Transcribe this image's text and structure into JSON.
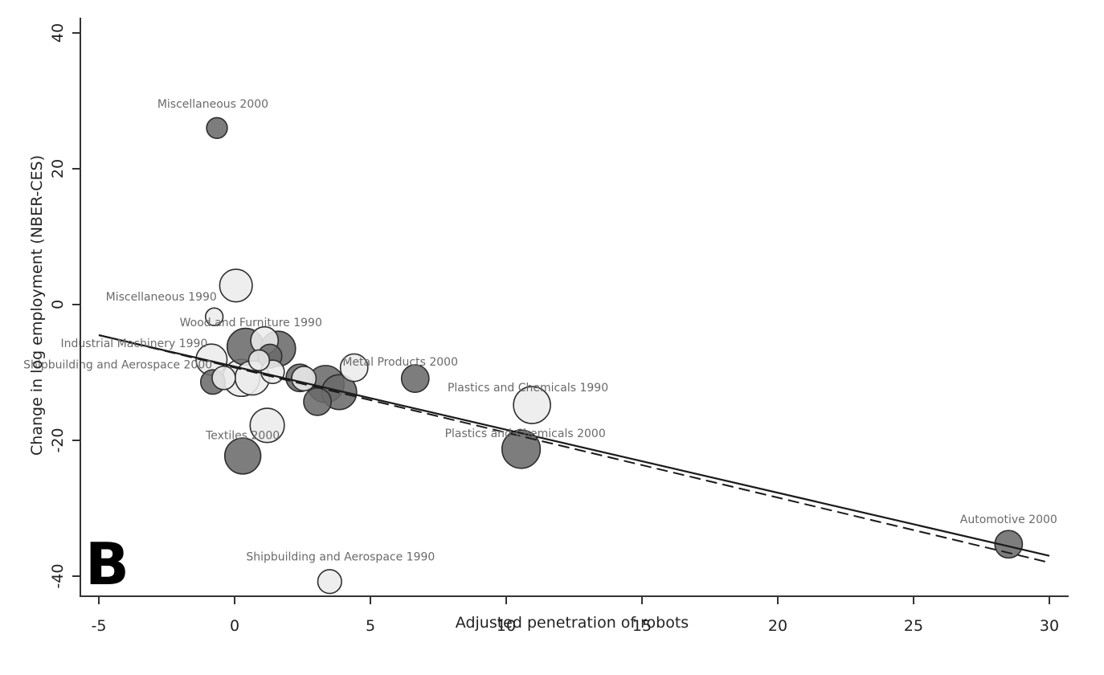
{
  "chart_data": {
    "type": "scatter",
    "panel_label": "B",
    "title": "",
    "xlabel": "Adjusted penetration of robots",
    "ylabel": "Change in log employment (NBER-CES)",
    "xlim": [
      -5.5,
      30.5
    ],
    "ylim": [
      -43,
      43
    ],
    "xticks": [
      -5,
      0,
      5,
      10,
      15,
      20,
      25,
      30
    ],
    "xtick_labels": [
      "-5",
      "0",
      "5",
      "10",
      "15",
      "20",
      "25",
      "30"
    ],
    "yticks": [
      -40,
      -20,
      0,
      20,
      40
    ],
    "ytick_labels": [
      "-40",
      "-20",
      "0",
      "20",
      "40"
    ],
    "grid": false,
    "colors": {
      "dark_fill": "#6b6b6b",
      "light_fill": "#ececec",
      "marker_stroke": "#2e2e2e",
      "line": "#1a1a1a",
      "annotation": "#6a6a6a"
    },
    "series": [
      {
        "name": "2000",
        "fill": "dark",
        "points": [
          {
            "x": -0.65,
            "y": 26.0,
            "weight": 0.1
          },
          {
            "x": 0.4,
            "y": -6.2,
            "weight": 0.45
          },
          {
            "x": 1.6,
            "y": -6.5,
            "weight": 0.4
          },
          {
            "x": 1.3,
            "y": -7.6,
            "weight": 0.15
          },
          {
            "x": -0.8,
            "y": -11.4,
            "weight": 0.16
          },
          {
            "x": 2.4,
            "y": -10.8,
            "weight": 0.22
          },
          {
            "x": 3.35,
            "y": -11.7,
            "weight": 0.46
          },
          {
            "x": 3.85,
            "y": -12.9,
            "weight": 0.4
          },
          {
            "x": 3.05,
            "y": -14.3,
            "weight": 0.22
          },
          {
            "x": 6.65,
            "y": -10.9,
            "weight": 0.22
          },
          {
            "x": 0.3,
            "y": -22.3,
            "weight": 0.43
          },
          {
            "x": 10.55,
            "y": -21.3,
            "weight": 0.5
          },
          {
            "x": 28.5,
            "y": -35.3,
            "weight": 0.22
          }
        ]
      },
      {
        "name": "1990",
        "fill": "light",
        "points": [
          {
            "x": 0.05,
            "y": 2.8,
            "weight": 0.34
          },
          {
            "x": -0.75,
            "y": -1.8,
            "weight": 0.06
          },
          {
            "x": 1.1,
            "y": -5.3,
            "weight": 0.22
          },
          {
            "x": -0.85,
            "y": -8.1,
            "weight": 0.3
          },
          {
            "x": 0.9,
            "y": -8.2,
            "weight": 0.1
          },
          {
            "x": -0.4,
            "y": -10.8,
            "weight": 0.14
          },
          {
            "x": 0.25,
            "y": -10.8,
            "weight": 0.46
          },
          {
            "x": 0.65,
            "y": -10.8,
            "weight": 0.38
          },
          {
            "x": 1.4,
            "y": -9.9,
            "weight": 0.14
          },
          {
            "x": 2.55,
            "y": -10.9,
            "weight": 0.16
          },
          {
            "x": 4.4,
            "y": -9.3,
            "weight": 0.22
          },
          {
            "x": 1.2,
            "y": -17.8,
            "weight": 0.38
          },
          {
            "x": 10.95,
            "y": -14.8,
            "weight": 0.46
          },
          {
            "x": 3.5,
            "y": -40.8,
            "weight": 0.15
          }
        ]
      }
    ],
    "fit_lines": [
      {
        "name": "fit-solid",
        "style": "solid",
        "x": [
          -5,
          30
        ],
        "y": [
          -4.5,
          -37.0
        ]
      },
      {
        "name": "fit-dashed",
        "style": "dashed",
        "x": [
          -5,
          30
        ],
        "y": [
          -4.5,
          -38.0
        ]
      }
    ],
    "annotations": [
      {
        "text": "Miscellaneous 2000",
        "x": -0.8,
        "y": 29.0
      },
      {
        "text": "Miscellaneous 1990",
        "x": -2.7,
        "y": 0.6
      },
      {
        "text": "Wood and Furniture 1990",
        "x": 0.6,
        "y": -3.2
      },
      {
        "text": "Industrial Machinery 1990",
        "x": -3.7,
        "y": -6.3
      },
      {
        "text": "Shipbuilding and Aerospace 2000",
        "x": -4.3,
        "y": -9.4
      },
      {
        "text": "Metal Products  2000",
        "x": 6.1,
        "y": -9.0
      },
      {
        "text": "Plastics and Chemicals 1990",
        "x": 10.8,
        "y": -12.8
      },
      {
        "text": "Plastics and Chemicals 2000",
        "x": 10.7,
        "y": -19.5
      },
      {
        "text": "Textiles 2000",
        "x": 0.3,
        "y": -19.8
      },
      {
        "text": "Automotive 2000",
        "x": 28.5,
        "y": -32.2
      },
      {
        "text": "Shipbuilding and Aerospace 1990",
        "x": 3.9,
        "y": -37.7
      }
    ]
  }
}
